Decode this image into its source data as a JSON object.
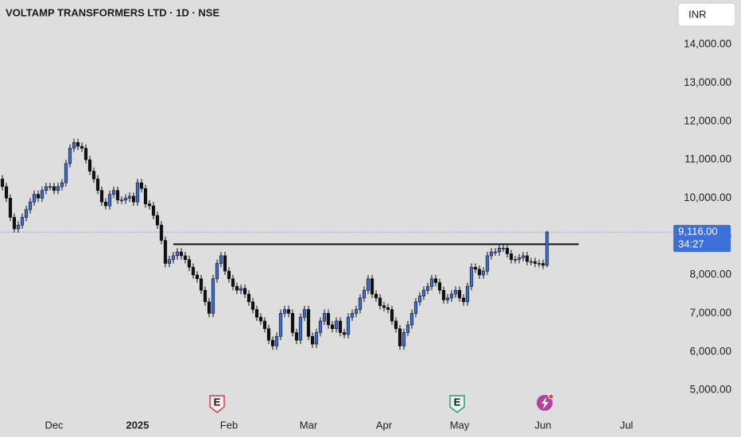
{
  "chart_data": {
    "type": "candlestick",
    "title": "VOLTAMP TRANSFORMERS LTD · 1D · NSE",
    "currency_button": "INR",
    "xlim": [
      -0.6,
      168.4
    ],
    "ylim": [
      3780,
      15160
    ],
    "xticks": [
      {
        "value": 13,
        "label": "Dec"
      },
      {
        "value": 34,
        "label": "2025"
      },
      {
        "value": 57,
        "label": "Feb"
      },
      {
        "value": 77,
        "label": "Mar"
      },
      {
        "value": 96,
        "label": "Apr"
      },
      {
        "value": 115,
        "label": "May"
      },
      {
        "value": 136,
        "label": "Jun"
      },
      {
        "value": 157,
        "label": "Jul"
      }
    ],
    "yticks": [
      {
        "value": 5000,
        "label": "5,000.00"
      },
      {
        "value": 6000,
        "label": "6,000.00"
      },
      {
        "value": 7000,
        "label": "7,000.00"
      },
      {
        "value": 8000,
        "label": "8,000.00"
      },
      {
        "value": 9000,
        "label": "9,000.00"
      },
      {
        "value": 10000,
        "label": "10,000.00"
      },
      {
        "value": 11000,
        "label": "11,000.00"
      },
      {
        "value": 12000,
        "label": "12,000.00"
      },
      {
        "value": 13000,
        "label": "13,000.00"
      },
      {
        "value": 14000,
        "label": "14,000.00"
      }
    ],
    "up_color": "#3d6fd8",
    "down_color": "#111111",
    "open": [
      10500,
      10300,
      10000,
      9500,
      9200,
      9300,
      9500,
      9700,
      9900,
      10100,
      10000,
      10200,
      10300,
      10300,
      10200,
      10300,
      10400,
      10900,
      11300,
      11450,
      11350,
      11300,
      11000,
      10700,
      10500,
      10200,
      9900,
      9800,
      10100,
      10200,
      9950,
      9950,
      10000,
      10050,
      9900,
      10400,
      10250,
      9850,
      9800,
      9550,
      9300,
      8900,
      8300,
      8400,
      8500,
      8600,
      8500,
      8400,
      8200,
      8000,
      7900,
      7600,
      7300,
      7000,
      7900,
      8300,
      8500,
      8100,
      7900,
      7700,
      7600,
      7650,
      7500,
      7300,
      7100,
      6900,
      6800,
      6600,
      6300,
      6150,
      6400,
      7000,
      7100,
      7000,
      6500,
      6300,
      6900,
      7100,
      6400,
      6200,
      6500,
      6800,
      7000,
      6700,
      6600,
      6800,
      6500,
      6450,
      6900,
      7000,
      7100,
      7400,
      7600,
      7900,
      7500,
      7400,
      7200,
      7150,
      7100,
      6800,
      6600,
      6150,
      6500,
      6700,
      7000,
      7300,
      7450,
      7600,
      7700,
      7900,
      7800,
      7600,
      7350,
      7400,
      7500,
      7600,
      7400,
      7300,
      7700,
      8200,
      8150,
      8000,
      8100,
      8500,
      8600,
      8600,
      8700,
      8700,
      8550,
      8400,
      8400,
      8450,
      8500,
      8350,
      8350,
      8300,
      8300,
      8250
    ],
    "high": [
      10600,
      10400,
      10100,
      9600,
      9400,
      9600,
      9800,
      10000,
      10200,
      10200,
      10300,
      10400,
      10400,
      10400,
      10400,
      10500,
      11000,
      11400,
      11550,
      11550,
      11450,
      11400,
      11100,
      10800,
      10600,
      10300,
      10000,
      10200,
      10300,
      10300,
      10050,
      10100,
      10150,
      10150,
      10500,
      10500,
      10350,
      9950,
      9900,
      9650,
      9400,
      9000,
      8500,
      8600,
      8700,
      8700,
      8600,
      8500,
      8300,
      8100,
      8000,
      7700,
      7400,
      8000,
      8400,
      8600,
      8600,
      8200,
      8000,
      7800,
      7750,
      7750,
      7600,
      7400,
      7200,
      7000,
      6900,
      6700,
      6400,
      6500,
      7100,
      7200,
      7200,
      7100,
      6600,
      7000,
      7200,
      7200,
      6500,
      6600,
      6900,
      7100,
      7100,
      6800,
      6900,
      6900,
      6600,
      7000,
      7100,
      7200,
      7500,
      7700,
      8000,
      8000,
      7600,
      7500,
      7300,
      7250,
      7200,
      6900,
      6700,
      6600,
      6800,
      7100,
      7400,
      7550,
      7700,
      7800,
      8000,
      8000,
      7900,
      7700,
      7500,
      7600,
      7700,
      7700,
      7500,
      7800,
      8300,
      8300,
      8250,
      8200,
      8600,
      8700,
      8700,
      8800,
      8800,
      8800,
      8650,
      8500,
      8550,
      8600,
      8600,
      8450,
      8450,
      8400,
      8400,
      9150
    ],
    "low": [
      10200,
      9900,
      9400,
      9100,
      9100,
      9200,
      9400,
      9600,
      9800,
      9900,
      9900,
      10100,
      10200,
      10100,
      10100,
      10200,
      10300,
      10800,
      11200,
      11250,
      11200,
      10900,
      10600,
      10400,
      10100,
      9800,
      9700,
      9700,
      10000,
      9850,
      9850,
      9850,
      9900,
      9800,
      9800,
      10150,
      9750,
      9700,
      9450,
      9200,
      8800,
      8200,
      8200,
      8300,
      8400,
      8400,
      8300,
      8100,
      7900,
      7800,
      7500,
      7200,
      6900,
      6900,
      7800,
      8200,
      8000,
      7800,
      7600,
      7500,
      7500,
      7400,
      7200,
      7000,
      6800,
      6700,
      6500,
      6200,
      6050,
      6050,
      6300,
      6900,
      6900,
      6400,
      6200,
      6200,
      6800,
      6300,
      6100,
      6100,
      6400,
      6700,
      6600,
      6500,
      6500,
      6400,
      6350,
      6350,
      6800,
      6900,
      7000,
      7300,
      7500,
      7400,
      7300,
      7100,
      7050,
      7000,
      6700,
      6500,
      6050,
      6050,
      6400,
      6600,
      6900,
      7200,
      7350,
      7500,
      7600,
      7700,
      7500,
      7250,
      7250,
      7300,
      7400,
      7300,
      7200,
      7200,
      7600,
      8050,
      7900,
      7900,
      8000,
      8400,
      8500,
      8500,
      8600,
      8450,
      8300,
      8300,
      8300,
      8350,
      8250,
      8250,
      8200,
      8200,
      8150,
      8200
    ],
    "close": [
      10300,
      10000,
      9500,
      9200,
      9300,
      9500,
      9700,
      9900,
      10100,
      10000,
      10200,
      10300,
      10300,
      10200,
      10300,
      10400,
      10900,
      11300,
      11450,
      11350,
      11300,
      11000,
      10700,
      10500,
      10200,
      9900,
      9800,
      10100,
      10200,
      9950,
      9950,
      10000,
      10050,
      9900,
      10400,
      10250,
      9850,
      9800,
      9550,
      9300,
      8900,
      8300,
      8400,
      8500,
      8600,
      8500,
      8400,
      8200,
      8000,
      7900,
      7600,
      7300,
      7000,
      7900,
      8300,
      8500,
      8100,
      7900,
      7700,
      7600,
      7650,
      7500,
      7300,
      7100,
      6900,
      6800,
      6600,
      6300,
      6150,
      6400,
      7000,
      7100,
      7000,
      6500,
      6300,
      6900,
      7100,
      6400,
      6200,
      6500,
      6800,
      7000,
      6700,
      6600,
      6800,
      6500,
      6450,
      6900,
      7000,
      7100,
      7400,
      7600,
      7900,
      7500,
      7400,
      7200,
      7150,
      7100,
      6800,
      6600,
      6150,
      6500,
      6700,
      7000,
      7300,
      7450,
      7600,
      7700,
      7900,
      7800,
      7600,
      7350,
      7400,
      7500,
      7600,
      7400,
      7300,
      7700,
      8200,
      8150,
      8000,
      8100,
      8500,
      8600,
      8600,
      8700,
      8700,
      8550,
      8400,
      8400,
      8450,
      8500,
      8350,
      8350,
      8300,
      8300,
      8250,
      9116
    ],
    "hline": {
      "y": 8800,
      "x": [
        43,
        145
      ]
    },
    "last_price": {
      "value": 9116,
      "label": "9,116.00"
    },
    "countdown": "34:27",
    "events": [
      {
        "x": 54,
        "label": "E"
      },
      {
        "x": 114.4,
        "label": "E"
      }
    ]
  }
}
